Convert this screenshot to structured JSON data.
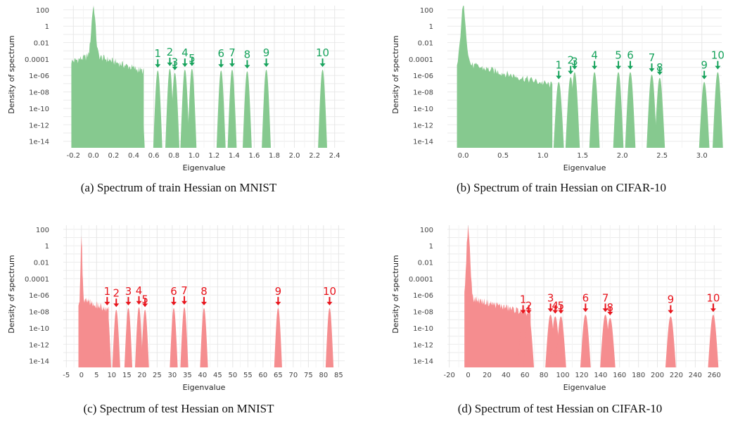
{
  "chart_data": [
    {
      "type": "area",
      "title": "",
      "caption": "(a) Spectrum of train Hessian on MNIST",
      "xlabel": "Eigenvalue",
      "ylabel": "Density of spectrum",
      "color": "#86c98f",
      "annotation_color": "#17a35c",
      "xlim": [
        -0.3,
        2.5
      ],
      "xticks": [
        -0.2,
        0.0,
        0.2,
        0.4,
        0.6,
        0.8,
        1.0,
        1.2,
        1.4,
        1.6,
        1.8,
        2.0,
        2.2,
        2.4
      ],
      "xtick_labels": [
        "-0.2",
        "0.0",
        "0.2",
        "0.4",
        "0.6",
        "0.8",
        "1.0",
        "1.2",
        "1.4",
        "1.6",
        "1.8",
        "2.0",
        "2.2",
        "2.4"
      ],
      "ylim_log10": [
        -14.8,
        2.5
      ],
      "yticks_log10": [
        2,
        0,
        -2,
        -4,
        -6,
        -8,
        -10,
        -12,
        -14
      ],
      "ytick_labels": [
        "100",
        "1",
        "0.01",
        "0.0001",
        "1e-06",
        "1e-08",
        "1e-10",
        "1e-12",
        "1e-14"
      ],
      "bulk": {
        "start": -0.22,
        "end": 0.5,
        "peak_x": 0.0,
        "peak_log10": 2.4,
        "shoulder_log10": -3.5,
        "tail_log10": -5.5
      },
      "bulk_lobes": [
        {
          "x": 0.37,
          "log10": -5.6,
          "w": 0.045
        },
        {
          "x": 0.47,
          "log10": -5.2,
          "w": 0.04
        }
      ],
      "outliers": [
        {
          "label": "1",
          "x": 0.64,
          "log10": -5.4
        },
        {
          "label": "2",
          "x": 0.76,
          "log10": -5.2
        },
        {
          "label": "3",
          "x": 0.81,
          "log10": -5.7
        },
        {
          "label": "4",
          "x": 0.91,
          "log10": -5.3
        },
        {
          "label": "5",
          "x": 0.98,
          "log10": -5.2
        },
        {
          "label": "6",
          "x": 1.27,
          "log10": -5.4
        },
        {
          "label": "7",
          "x": 1.38,
          "log10": -5.3
        },
        {
          "label": "8",
          "x": 1.53,
          "log10": -5.5
        },
        {
          "label": "9",
          "x": 1.72,
          "log10": -5.3
        },
        {
          "label": "10",
          "x": 2.28,
          "log10": -5.3
        }
      ],
      "peak_halfwidth": 0.045
    },
    {
      "type": "area",
      "title": "",
      "caption": "(b) Spectrum of train Hessian on CIFAR-10",
      "xlabel": "Eigenvalue",
      "ylabel": "Density of spectrum",
      "color": "#86c98f",
      "annotation_color": "#17a35c",
      "xlim": [
        -0.2,
        3.25
      ],
      "xticks": [
        0.0,
        0.5,
        1.0,
        1.5,
        2.0,
        2.5,
        3.0
      ],
      "xtick_labels": [
        "0.0",
        "0.5",
        "1.0",
        "1.5",
        "2.0",
        "2.5",
        "3.0"
      ],
      "ylim_log10": [
        -14.8,
        2.5
      ],
      "yticks_log10": [
        2,
        0,
        -2,
        -4,
        -6,
        -8,
        -10,
        -12,
        -14
      ],
      "ytick_labels": [
        "100",
        "1",
        "0.01",
        "0.0001",
        "1e-06",
        "1e-08",
        "1e-10",
        "1e-12",
        "1e-14"
      ],
      "bulk": {
        "start": -0.08,
        "end": 1.12,
        "peak_x": 0.0,
        "peak_log10": 2.4,
        "shoulder_log10": -4.5,
        "tail_log10": -7.2
      },
      "bulk_lobes": [],
      "outliers": [
        {
          "label": "1",
          "x": 1.2,
          "log10": -6.8
        },
        {
          "label": "2",
          "x": 1.35,
          "log10": -6.2
        },
        {
          "label": "3",
          "x": 1.4,
          "log10": -5.6
        },
        {
          "label": "4",
          "x": 1.65,
          "log10": -5.6
        },
        {
          "label": "5",
          "x": 1.95,
          "log10": -5.6
        },
        {
          "label": "6",
          "x": 2.1,
          "log10": -5.6
        },
        {
          "label": "7",
          "x": 2.37,
          "log10": -5.9
        },
        {
          "label": "8",
          "x": 2.47,
          "log10": -6.3
        },
        {
          "label": "9",
          "x": 3.03,
          "log10": -6.8
        },
        {
          "label": "10",
          "x": 3.2,
          "log10": -5.6
        }
      ],
      "peak_halfwidth": 0.065
    },
    {
      "type": "area",
      "title": "",
      "caption": "(c) Spectrum of test Hessian on MNIST",
      "xlabel": "Eigenvalue",
      "ylabel": "Density of spectrum",
      "color": "#f58d8f",
      "annotation_color": "#e8141c",
      "xlim": [
        -6,
        87
      ],
      "xticks": [
        -5,
        0,
        5,
        10,
        15,
        20,
        25,
        30,
        35,
        40,
        45,
        50,
        55,
        60,
        65,
        70,
        75,
        80,
        85
      ],
      "xtick_labels": [
        "-5",
        "0",
        "5",
        "10",
        "15",
        "20",
        "25",
        "30",
        "35",
        "40",
        "45",
        "50",
        "55",
        "60",
        "65",
        "70",
        "75",
        "80",
        "85"
      ],
      "ylim_log10": [
        -14.8,
        2.5
      ],
      "yticks_log10": [
        2,
        0,
        -2,
        -4,
        -6,
        -8,
        -10,
        -12,
        -14
      ],
      "ytick_labels": [
        "100",
        "1",
        "0.01",
        "0.0001",
        "1e-06",
        "1e-08",
        "1e-10",
        "1e-12",
        "1e-14"
      ],
      "bulk": {
        "start": -1.0,
        "end": 9.0,
        "peak_x": 0.0,
        "peak_log10": 1.0,
        "shoulder_log10": -6.5,
        "tail_log10": -7.8
      },
      "bulk_lobes": [],
      "outliers": [
        {
          "label": "1",
          "x": 8.5,
          "log10": -7.6
        },
        {
          "label": "2",
          "x": 11.5,
          "log10": -7.8
        },
        {
          "label": "3",
          "x": 15.5,
          "log10": -7.6
        },
        {
          "label": "4",
          "x": 19.0,
          "log10": -7.5
        },
        {
          "label": "5",
          "x": 21.0,
          "log10": -7.8
        },
        {
          "label": "6",
          "x": 30.5,
          "log10": -7.6
        },
        {
          "label": "7",
          "x": 34.0,
          "log10": -7.5
        },
        {
          "label": "8",
          "x": 40.5,
          "log10": -7.6
        },
        {
          "label": "9",
          "x": 65.0,
          "log10": -7.6
        },
        {
          "label": "10",
          "x": 82.0,
          "log10": -7.6
        }
      ],
      "peak_halfwidth": 1.3
    },
    {
      "type": "area",
      "title": "",
      "caption": "(d) Spectrum of test Hessian on CIFAR-10",
      "xlabel": "Eigenvalue",
      "ylabel": "Density of spectrum",
      "color": "#f58d8f",
      "annotation_color": "#e8141c",
      "xlim": [
        -22,
        268
      ],
      "xticks": [
        -20,
        0,
        20,
        40,
        60,
        80,
        100,
        120,
        140,
        160,
        180,
        200,
        220,
        240,
        260
      ],
      "xtick_labels": [
        "-20",
        "0",
        "20",
        "40",
        "60",
        "80",
        "100",
        "120",
        "140",
        "160",
        "180",
        "200",
        "220",
        "240",
        "260"
      ],
      "ylim_log10": [
        -14.8,
        2.5
      ],
      "yticks_log10": [
        2,
        0,
        -2,
        -4,
        -6,
        -8,
        -10,
        -12,
        -14
      ],
      "ytick_labels": [
        "100",
        "1",
        "0.01",
        "0.0001",
        "1e-06",
        "1e-08",
        "1e-10",
        "1e-12",
        "1e-14"
      ],
      "bulk": {
        "start": -4,
        "end": 66,
        "peak_x": 0.0,
        "peak_log10": 2.3,
        "shoulder_log10": -6.3,
        "tail_log10": -8.3
      },
      "bulk_lobes": [],
      "outliers": [
        {
          "label": "1",
          "x": 58,
          "log10": -8.6
        },
        {
          "label": "2",
          "x": 64,
          "log10": -8.6
        },
        {
          "label": "3",
          "x": 87,
          "log10": -8.4
        },
        {
          "label": "4",
          "x": 92,
          "log10": -8.6
        },
        {
          "label": "5",
          "x": 98,
          "log10": -8.6
        },
        {
          "label": "6",
          "x": 124,
          "log10": -8.4
        },
        {
          "label": "7",
          "x": 145,
          "log10": -8.4
        },
        {
          "label": "8",
          "x": 150,
          "log10": -8.8
        },
        {
          "label": "9",
          "x": 214,
          "log10": -8.6
        },
        {
          "label": "10",
          "x": 259,
          "log10": -8.4
        }
      ],
      "peak_halfwidth": 5.5
    }
  ]
}
